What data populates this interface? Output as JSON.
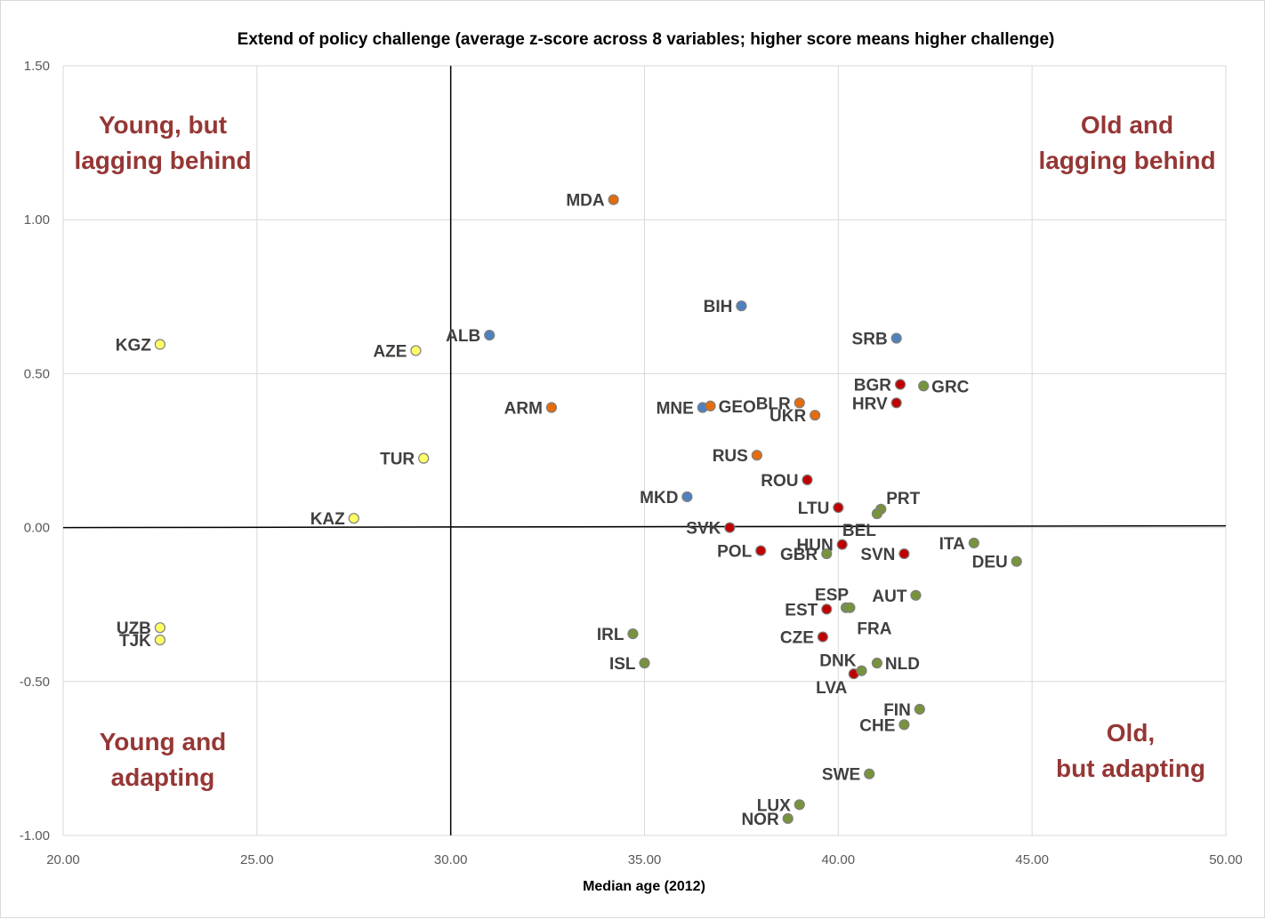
{
  "chart_data": {
    "type": "scatter",
    "title": "Extend of policy challenge (average z-score across 8 variables; higher score means higher challenge)",
    "xlabel": "Median age (2012)",
    "ylabel": "",
    "xlim": [
      20,
      50
    ],
    "ylim": [
      -1.0,
      1.5
    ],
    "x_ticks": [
      "20.00",
      "25.00",
      "30.00",
      "35.00",
      "40.00",
      "45.00",
      "50.00"
    ],
    "y_ticks": [
      "1.50",
      "1.00",
      "0.50",
      "0.00",
      "-0.50",
      "-1.00"
    ],
    "x_tick_values": [
      20,
      25,
      30,
      35,
      40,
      45,
      50
    ],
    "y_tick_values": [
      1.5,
      1.0,
      0.5,
      0.0,
      -0.5,
      -1.0
    ],
    "grid": true,
    "divider_x": 30,
    "divider_y": 0,
    "quadrant_labels": [
      {
        "line1": "Young, but",
        "line2": "lagging behind",
        "position": "top-left"
      },
      {
        "line1": "Old and",
        "line2": "lagging behind",
        "position": "top-right"
      },
      {
        "line1": "Young and",
        "line2": "adapting",
        "position": "bottom-left"
      },
      {
        "line1": "Old,",
        "line2": "but adapting",
        "position": "bottom-right"
      }
    ],
    "colors": {
      "yellow": "#ffff66",
      "blue": "#4f81bd",
      "orange": "#e46c0a",
      "red": "#c00000",
      "green": "#77933c",
      "marker_border": "#7f7f7f",
      "quadrant_text": "#953735"
    },
    "points": [
      {
        "label": "KGZ",
        "x": 22.5,
        "y": 0.595,
        "color": "yellow",
        "side": "left"
      },
      {
        "label": "AZE",
        "x": 29.1,
        "y": 0.575,
        "color": "yellow",
        "side": "left"
      },
      {
        "label": "TUR",
        "x": 29.3,
        "y": 0.225,
        "color": "yellow",
        "side": "left"
      },
      {
        "label": "KAZ",
        "x": 27.5,
        "y": 0.03,
        "color": "yellow",
        "side": "left"
      },
      {
        "label": "UZB",
        "x": 22.5,
        "y": -0.325,
        "color": "yellow",
        "side": "left"
      },
      {
        "label": "TJK",
        "x": 22.5,
        "y": -0.365,
        "color": "yellow",
        "side": "left"
      },
      {
        "label": "ALB",
        "x": 31.0,
        "y": 0.625,
        "color": "blue",
        "side": "left"
      },
      {
        "label": "BIH",
        "x": 37.5,
        "y": 0.72,
        "color": "blue",
        "side": "left"
      },
      {
        "label": "SRB",
        "x": 41.5,
        "y": 0.615,
        "color": "blue",
        "side": "left"
      },
      {
        "label": "MNE",
        "x": 36.5,
        "y": 0.39,
        "color": "blue",
        "side": "left"
      },
      {
        "label": "MKD",
        "x": 36.1,
        "y": 0.1,
        "color": "blue",
        "side": "left"
      },
      {
        "label": "MDA",
        "x": 34.2,
        "y": 1.065,
        "color": "orange",
        "side": "left"
      },
      {
        "label": "ARM",
        "x": 32.6,
        "y": 0.39,
        "color": "orange",
        "side": "left"
      },
      {
        "label": "GEO",
        "x": 36.7,
        "y": 0.395,
        "color": "orange",
        "side": "right"
      },
      {
        "label": "BLR",
        "x": 39.0,
        "y": 0.405,
        "color": "orange",
        "side": "left"
      },
      {
        "label": "UKR",
        "x": 39.4,
        "y": 0.365,
        "color": "orange",
        "side": "left"
      },
      {
        "label": "RUS",
        "x": 37.9,
        "y": 0.235,
        "color": "orange",
        "side": "left"
      },
      {
        "label": "BGR",
        "x": 41.6,
        "y": 0.465,
        "color": "red",
        "side": "left"
      },
      {
        "label": "HRV",
        "x": 41.5,
        "y": 0.405,
        "color": "red",
        "side": "left"
      },
      {
        "label": "ROU",
        "x": 39.2,
        "y": 0.155,
        "color": "red",
        "side": "left"
      },
      {
        "label": "LTU",
        "x": 40.0,
        "y": 0.065,
        "color": "red",
        "side": "left"
      },
      {
        "label": "SVK",
        "x": 37.2,
        "y": 0.0,
        "color": "red",
        "side": "left"
      },
      {
        "label": "HUN",
        "x": 40.1,
        "y": -0.055,
        "color": "red",
        "side": "left"
      },
      {
        "label": "POL",
        "x": 38.0,
        "y": -0.075,
        "color": "red",
        "side": "left"
      },
      {
        "label": "SVN",
        "x": 41.7,
        "y": -0.085,
        "color": "red",
        "side": "left"
      },
      {
        "label": "EST",
        "x": 39.7,
        "y": -0.265,
        "color": "red",
        "side": "left"
      },
      {
        "label": "CZE",
        "x": 39.6,
        "y": -0.355,
        "color": "red",
        "side": "left"
      },
      {
        "label": "LVA",
        "x": 40.4,
        "y": -0.475,
        "color": "red",
        "side": "below"
      },
      {
        "label": "GRC",
        "x": 42.2,
        "y": 0.46,
        "color": "green",
        "side": "right"
      },
      {
        "label": "PRT",
        "x": 41.1,
        "y": 0.06,
        "color": "green",
        "side": "above-right"
      },
      {
        "label": "BEL",
        "x": 41.0,
        "y": 0.045,
        "color": "green",
        "side": "below-left"
      },
      {
        "label": "ITA",
        "x": 43.5,
        "y": -0.05,
        "color": "green",
        "side": "left"
      },
      {
        "label": "DEU",
        "x": 44.6,
        "y": -0.11,
        "color": "green",
        "side": "left"
      },
      {
        "label": "GBR",
        "x": 39.7,
        "y": -0.085,
        "color": "green",
        "side": "left"
      },
      {
        "label": "ESP",
        "x": 40.2,
        "y": -0.26,
        "color": "green",
        "side": "above"
      },
      {
        "label": "FRA",
        "x": 40.3,
        "y": -0.26,
        "color": "green",
        "side": "below-right"
      },
      {
        "label": "AUT",
        "x": 42.0,
        "y": -0.22,
        "color": "green",
        "side": "left"
      },
      {
        "label": "IRL",
        "x": 34.7,
        "y": -0.345,
        "color": "green",
        "side": "left"
      },
      {
        "label": "ISL",
        "x": 35.0,
        "y": -0.44,
        "color": "green",
        "side": "left"
      },
      {
        "label": "DNK",
        "x": 40.6,
        "y": -0.465,
        "color": "green",
        "side": "above-left"
      },
      {
        "label": "NLD",
        "x": 41.0,
        "y": -0.44,
        "color": "green",
        "side": "right"
      },
      {
        "label": "FIN",
        "x": 42.1,
        "y": -0.59,
        "color": "green",
        "side": "left"
      },
      {
        "label": "CHE",
        "x": 41.7,
        "y": -0.64,
        "color": "green",
        "side": "left"
      },
      {
        "label": "SWE",
        "x": 40.8,
        "y": -0.8,
        "color": "green",
        "side": "left"
      },
      {
        "label": "LUX",
        "x": 39.0,
        "y": -0.9,
        "color": "green",
        "side": "left"
      },
      {
        "label": "NOR",
        "x": 38.7,
        "y": -0.945,
        "color": "green",
        "side": "left"
      }
    ]
  }
}
